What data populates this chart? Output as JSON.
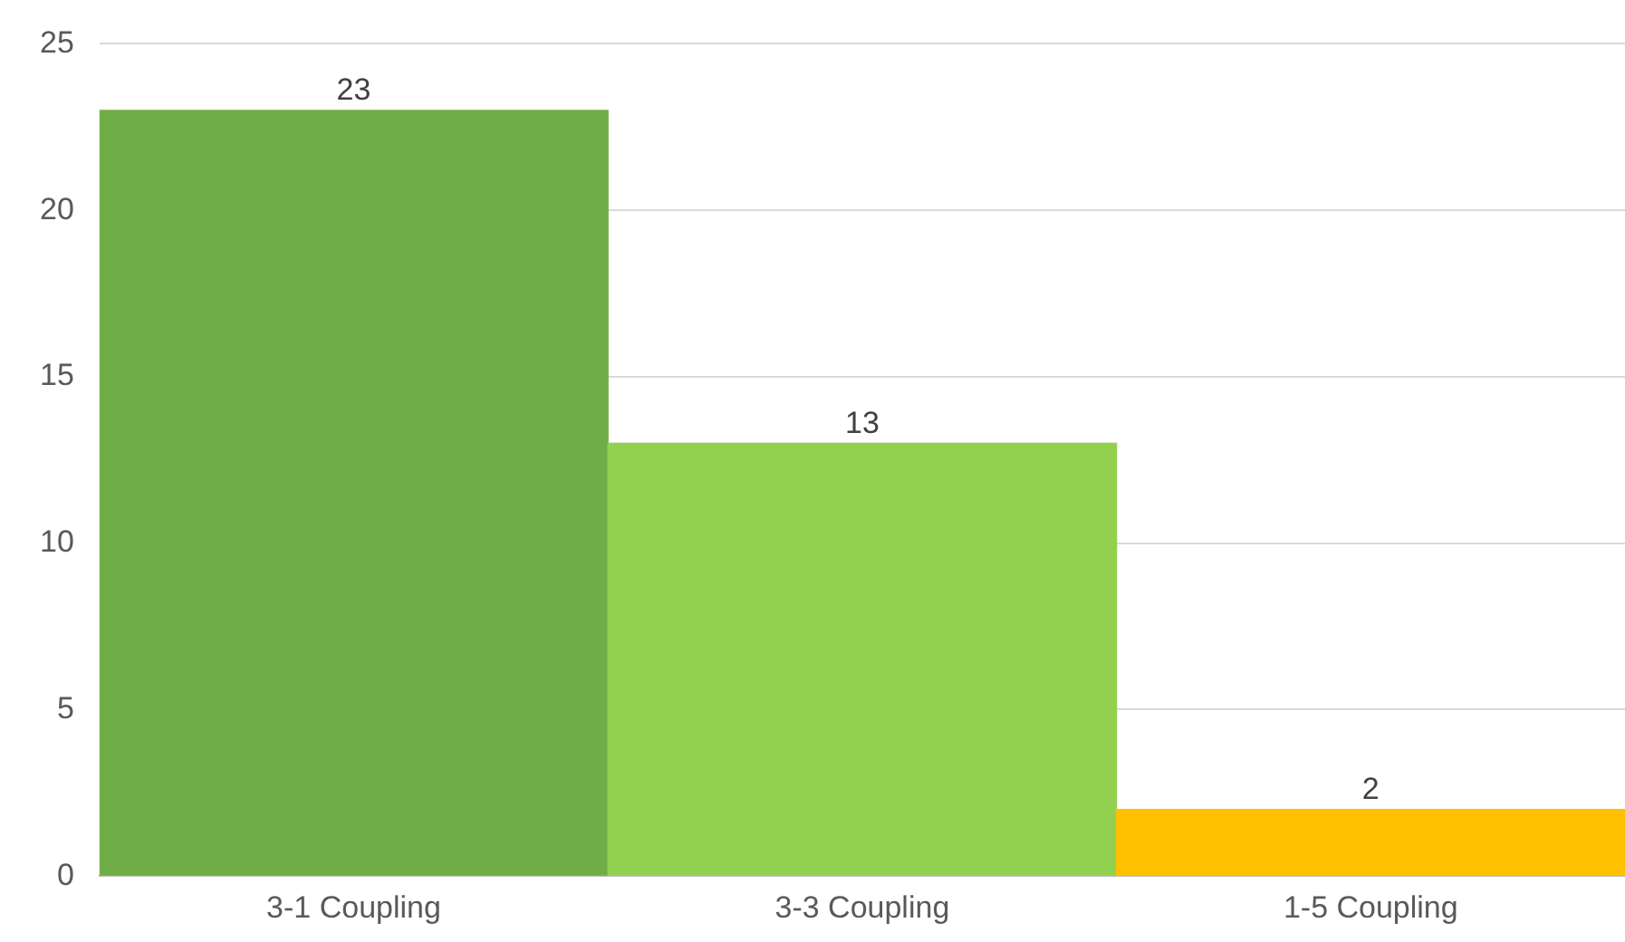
{
  "chart_data": {
    "type": "bar",
    "categories": [
      "3-1 Coupling",
      "3-3 Coupling",
      "1-5 Coupling"
    ],
    "values": [
      23,
      13,
      2
    ],
    "colors": [
      "#70ad47",
      "#92d050",
      "#ffc000"
    ],
    "ylim": [
      0,
      25
    ],
    "yticks": [
      0,
      5,
      10,
      15,
      20,
      25
    ],
    "grid": "y",
    "data_labels": true,
    "legend": false
  }
}
